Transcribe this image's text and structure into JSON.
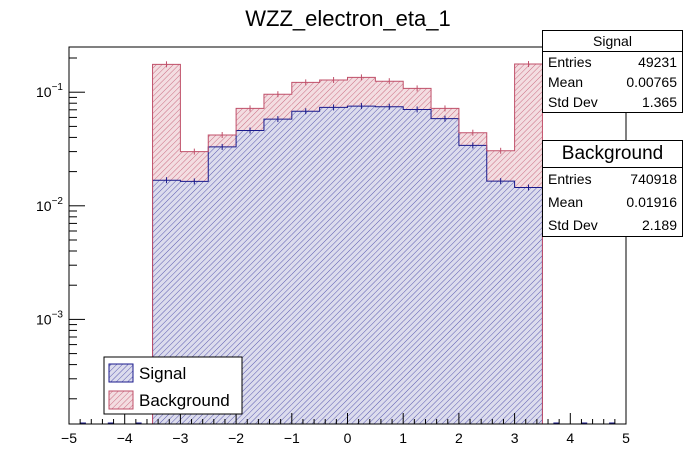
{
  "chart_data": {
    "type": "histogram",
    "title": "WZZ_electron_eta_1",
    "xlabel": "",
    "ylabel": "",
    "xlim": [
      -5,
      5
    ],
    "ylim": [
      0.00012,
      0.25
    ],
    "yscale": "log",
    "x_ticks": [
      "−5",
      "−4",
      "−3",
      "−2",
      "−1",
      "0",
      "1",
      "2",
      "3",
      "4",
      "5"
    ],
    "y_ticks": [
      {
        "value": 0.001,
        "base": "10",
        "exp": "−3"
      },
      {
        "value": 0.01,
        "base": "10",
        "exp": "−2"
      },
      {
        "value": 0.1,
        "base": "10",
        "exp": "−1"
      }
    ],
    "bin_edges": [
      -3.5,
      -3.0,
      -2.5,
      -2.0,
      -1.5,
      -1.0,
      -0.5,
      0.0,
      0.5,
      1.0,
      1.5,
      2.0,
      2.5,
      3.0,
      3.5
    ],
    "series": [
      {
        "name": "Signal",
        "color": "#1a1a8c",
        "fill": "#d6d8ea",
        "values": [
          0.0168,
          0.0164,
          0.033,
          0.046,
          0.058,
          0.068,
          0.0735,
          0.0755,
          0.0745,
          0.0705,
          0.0585,
          0.034,
          0.0165,
          0.0145
        ]
      },
      {
        "name": "Background",
        "color": "#c0506a",
        "fill": "#f0d8dc",
        "values": [
          0.176,
          0.03,
          0.042,
          0.072,
          0.096,
          0.122,
          0.128,
          0.135,
          0.125,
          0.108,
          0.072,
          0.044,
          0.0305,
          0.177
        ]
      }
    ],
    "legend": [
      {
        "label": "Signal"
      },
      {
        "label": "Background"
      }
    ],
    "legend_position": "bottom-left"
  },
  "stats": {
    "signal": {
      "title": "Signal",
      "rows": [
        {
          "label": "Entries",
          "value": "49231"
        },
        {
          "label": "Mean",
          "value": "0.00765"
        },
        {
          "label": "Std Dev",
          "value": "1.365"
        }
      ]
    },
    "background": {
      "title": "Background",
      "rows": [
        {
          "label": "Entries",
          "value": "740918"
        },
        {
          "label": "Mean",
          "value": "0.01916"
        },
        {
          "label": "Std Dev",
          "value": "2.189"
        }
      ]
    }
  }
}
